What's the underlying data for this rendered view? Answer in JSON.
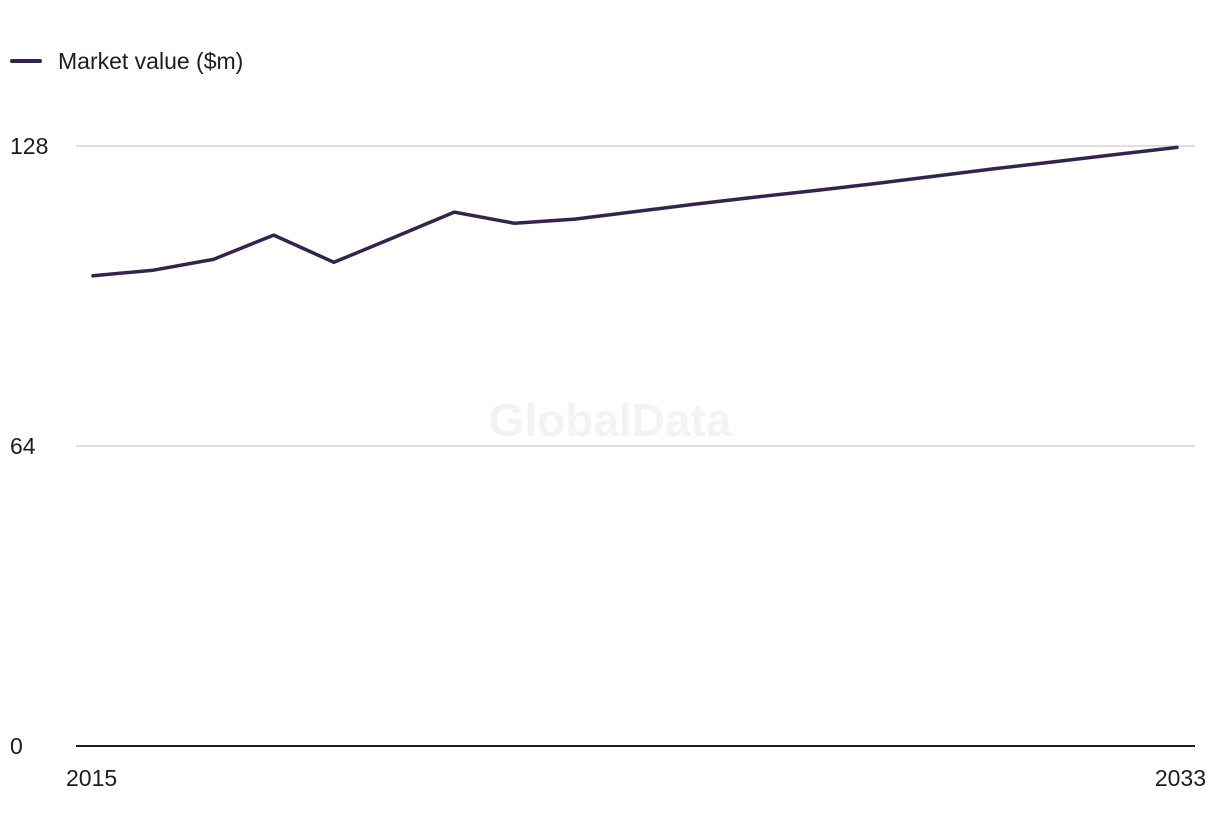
{
  "watermark": "GlobalData",
  "colors": {
    "series": "#35234f",
    "grid": "#d6d6d9",
    "axis": "#1e1b24",
    "text": "#1e1b24"
  },
  "chart_data": {
    "type": "line",
    "title": "",
    "xlabel": "",
    "ylabel": "",
    "x": [
      2015,
      2016,
      2017,
      2018,
      2019,
      2020,
      2021,
      2022,
      2023,
      2024,
      2025,
      2026,
      2027,
      2028,
      2029,
      2030,
      2031,
      2032,
      2033
    ],
    "x_ticks": [
      "2015",
      "2033"
    ],
    "y_ticks": [
      "0",
      "64",
      "128"
    ],
    "xlim": [
      2015,
      2033
    ],
    "ylim": [
      0,
      128
    ],
    "grid": true,
    "legend_position": "top-left",
    "series": [
      {
        "name": "Market value ($m)",
        "values": [
          100.3,
          101.5,
          103.8,
          109.0,
          103.2,
          108.5,
          113.9,
          111.5,
          112.4,
          114.0,
          115.6,
          117.1,
          118.5,
          120.0,
          121.6,
          123.2,
          124.7,
          126.2,
          127.7
        ]
      }
    ]
  }
}
